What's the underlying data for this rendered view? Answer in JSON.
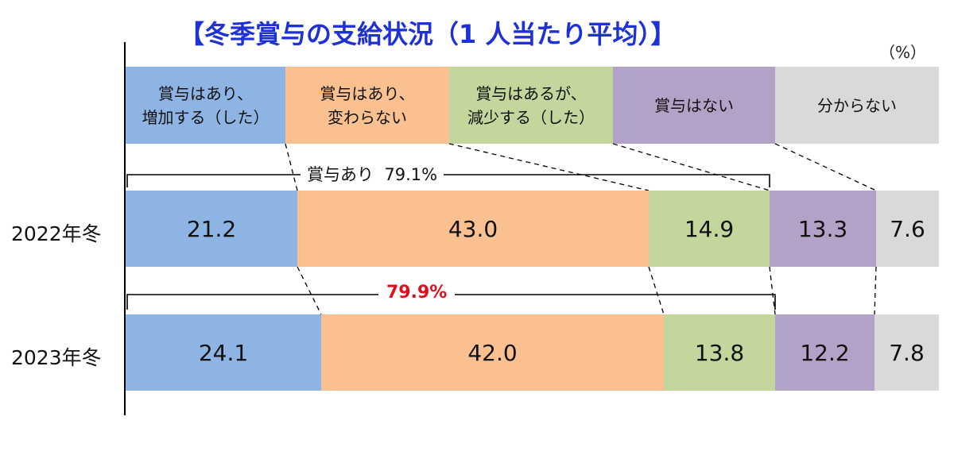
{
  "title": "【冬季賞与の支給状況（1 人当たり平均）】",
  "unit": "（%）",
  "categories": [
    {
      "line1": "賞与はあり、",
      "line2": "増加する（した）",
      "color": "#8eb4e3"
    },
    {
      "line1": "賞与はあり、",
      "line2": "変わらない",
      "color": "#fac090"
    },
    {
      "line1": "賞与はあるが、",
      "line2": "減少する（した）",
      "color": "#c3d69b"
    },
    {
      "line1": "賞与はない",
      "line2": "",
      "color": "#b3a2c7"
    },
    {
      "line1": "分からない",
      "line2": "",
      "color": "#d9d9d9"
    }
  ],
  "rows": [
    {
      "label": "2022年冬",
      "values": [
        "21.2",
        "43.0",
        "14.9",
        "13.3",
        "7.6"
      ]
    },
    {
      "label": "2023年冬",
      "values": [
        "24.1",
        "42.0",
        "13.8",
        "12.2",
        "7.8"
      ]
    }
  ],
  "brackets": {
    "y2022_label": "賞与あり",
    "y2022_value": "79.1%",
    "y2023_value": "79.9%"
  },
  "chart_data": {
    "type": "bar",
    "stacked": true,
    "orientation": "horizontal",
    "title": "【冬季賞与の支給状況（1 人当たり平均）】",
    "unit": "（%）",
    "categories": [
      "2022年冬",
      "2023年冬"
    ],
    "series": [
      {
        "name": "賞与はあり、増加する（した）",
        "values": [
          21.2,
          24.1
        ],
        "color": "#8eb4e3"
      },
      {
        "name": "賞与はあり、変わらない",
        "values": [
          43.0,
          42.0
        ],
        "color": "#fac090"
      },
      {
        "name": "賞与はあるが、減少する（した）",
        "values": [
          14.9,
          13.8
        ],
        "color": "#c3d69b"
      },
      {
        "name": "賞与はない",
        "values": [
          13.3,
          12.2
        ],
        "color": "#b3a2c7"
      },
      {
        "name": "分からない",
        "values": [
          7.6,
          7.8
        ],
        "color": "#d9d9d9"
      }
    ],
    "annotations": [
      {
        "text": "賞与あり 79.1%",
        "applies_to": "2022年冬"
      },
      {
        "text": "79.9%",
        "applies_to": "2023年冬",
        "color": "#e0101c"
      }
    ],
    "legend_position": "top"
  }
}
